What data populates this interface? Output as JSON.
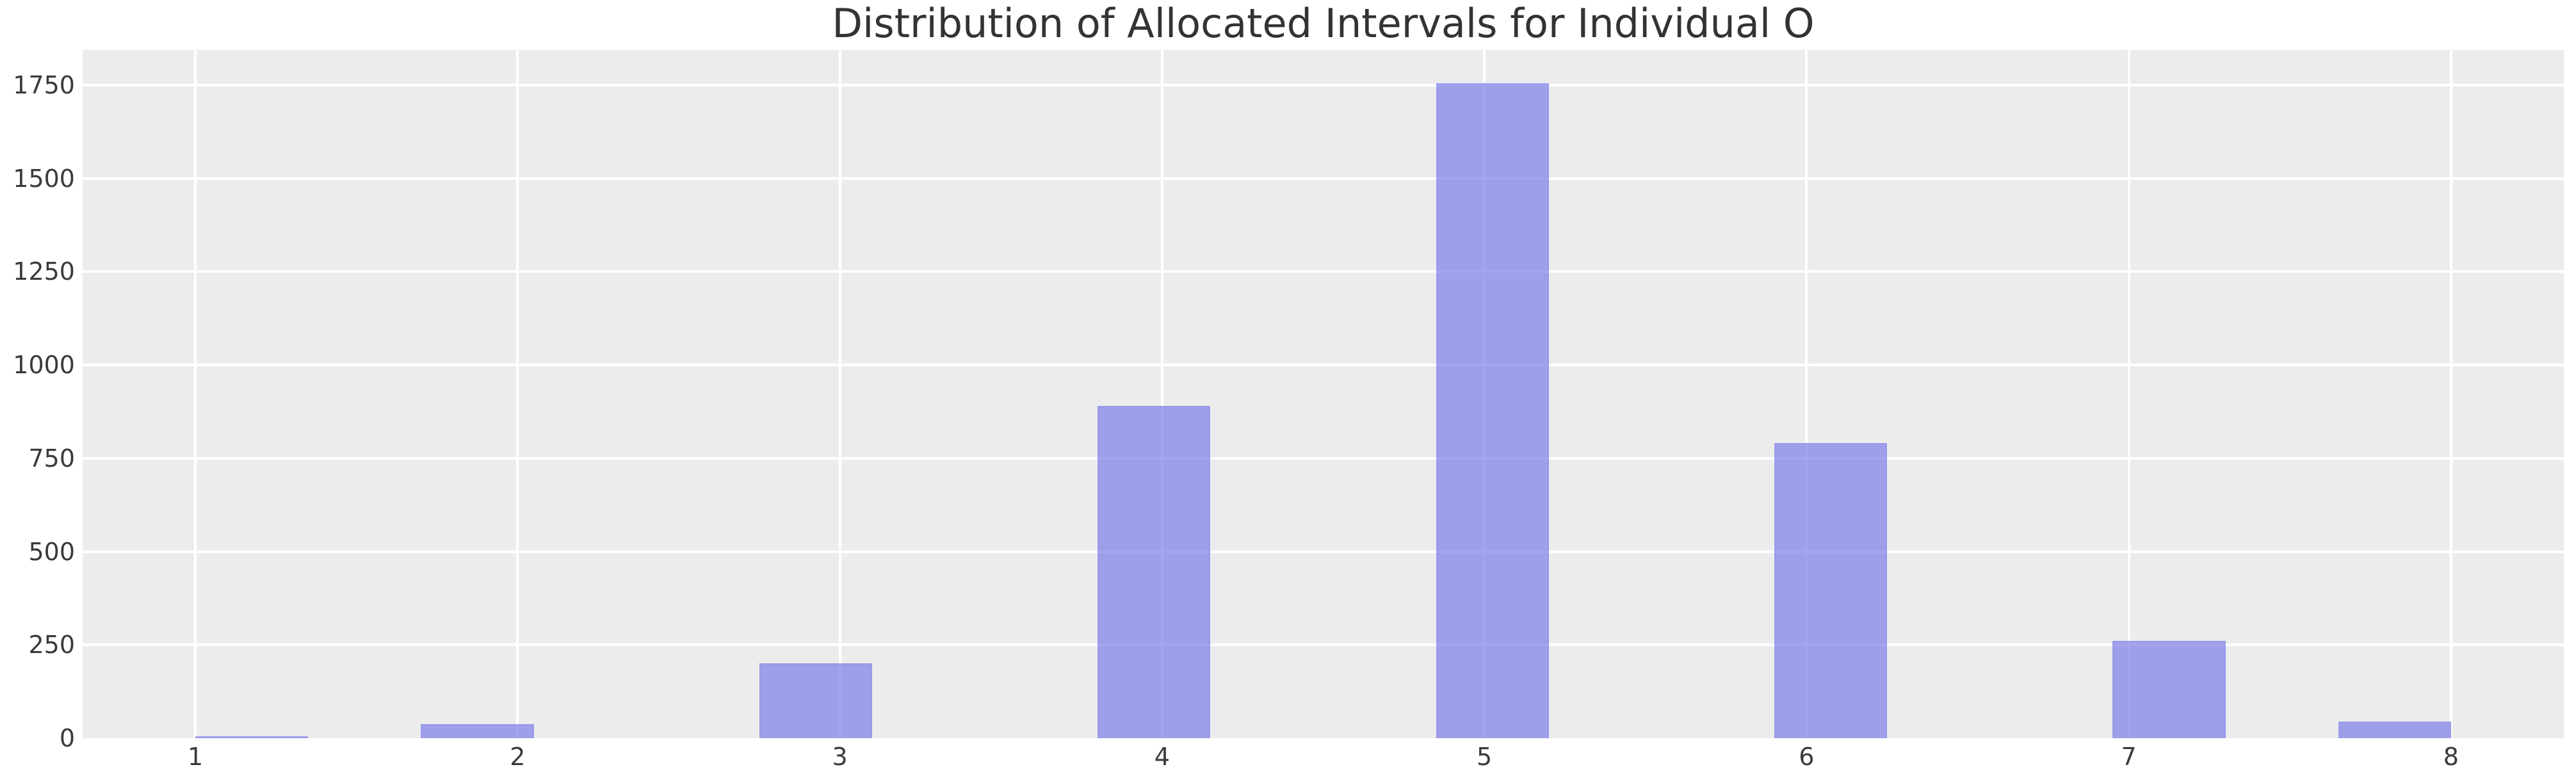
{
  "chart_data": {
    "type": "bar",
    "subtype": "histogram",
    "title": "Distribution of Allocated Intervals for Individual O",
    "categories": [
      "1",
      "2",
      "3",
      "4",
      "5",
      "6",
      "7",
      "8"
    ],
    "values": [
      5,
      38,
      200,
      890,
      1755,
      790,
      260,
      45
    ],
    "bins": [
      {
        "x_left": 1.0,
        "x_right": 1.35,
        "count": 5
      },
      {
        "x_left": 1.7,
        "x_right": 2.05,
        "count": 38
      },
      {
        "x_left": 2.75,
        "x_right": 3.1,
        "count": 200
      },
      {
        "x_left": 3.8,
        "x_right": 4.15,
        "count": 890
      },
      {
        "x_left": 4.85,
        "x_right": 5.2,
        "count": 1755
      },
      {
        "x_left": 5.9,
        "x_right": 6.25,
        "count": 790
      },
      {
        "x_left": 6.95,
        "x_right": 7.3,
        "count": 260
      },
      {
        "x_left": 7.65,
        "x_right": 8.0,
        "count": 45
      }
    ],
    "bin_width": 0.35,
    "xlabel": "",
    "ylabel": "",
    "xticks": [
      1,
      2,
      3,
      4,
      5,
      6,
      7,
      8
    ],
    "yticks": [
      0,
      250,
      500,
      750,
      1000,
      1250,
      1500,
      1750
    ],
    "xlim": [
      0.65,
      8.35
    ],
    "ylim": [
      0,
      1844
    ],
    "grid": true,
    "legend": false,
    "colors": {
      "bar_fill": "#9e9fe8",
      "bar_edge": "#cdcdf2",
      "axes_background": "#ececec",
      "gridline": "#ffffff",
      "figure_background": "#ffffff",
      "text": "#3a3a3a"
    }
  }
}
